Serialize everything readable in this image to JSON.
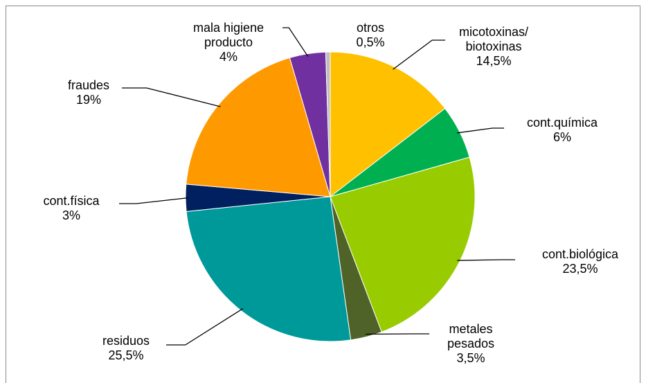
{
  "chart_data": {
    "type": "pie",
    "categories": [
      "micotoxinas/\nbiotoxinas",
      "cont.química",
      "cont.biológica",
      "metales\npesados",
      "residuos",
      "cont.física",
      "fraudes",
      "mala higiene\nproducto",
      "otros"
    ],
    "values": [
      14.5,
      6,
      23.5,
      3.5,
      25.5,
      3,
      19,
      4,
      0.5
    ],
    "value_labels": [
      "14,5%",
      "6%",
      "23,5%",
      "3,5%",
      "25,5%",
      "3%",
      "19%",
      "4%",
      "0,5%"
    ],
    "colors": [
      "#FFC000",
      "#00B050",
      "#99CC00",
      "#4F6228",
      "#009999",
      "#002060",
      "#FF9900",
      "#7030A0",
      "#BFBFBF"
    ]
  }
}
